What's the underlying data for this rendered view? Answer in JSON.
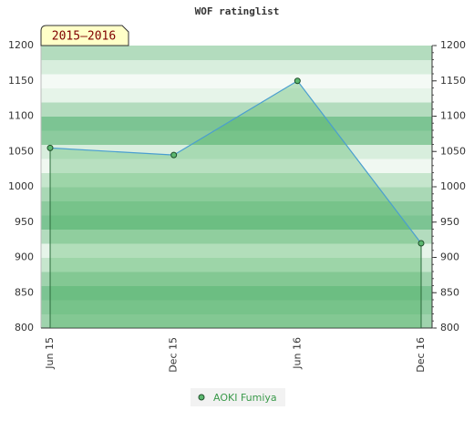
{
  "chart_data": {
    "type": "line",
    "title": "WOF ratinglist",
    "annotation": "2015–2016",
    "categories": [
      "Jun 15",
      "Dec 15",
      "Jun 16",
      "Dec 16"
    ],
    "series": [
      {
        "name": "AOKI Fumiya",
        "color": "#4a9ed0",
        "values": [
          1055,
          1045,
          1150,
          920
        ]
      }
    ],
    "ylim": [
      800,
      1200
    ],
    "yticks": [
      800,
      850,
      900,
      950,
      1000,
      1050,
      1100,
      1150,
      1200
    ],
    "grid": true,
    "legend": "bottom"
  }
}
